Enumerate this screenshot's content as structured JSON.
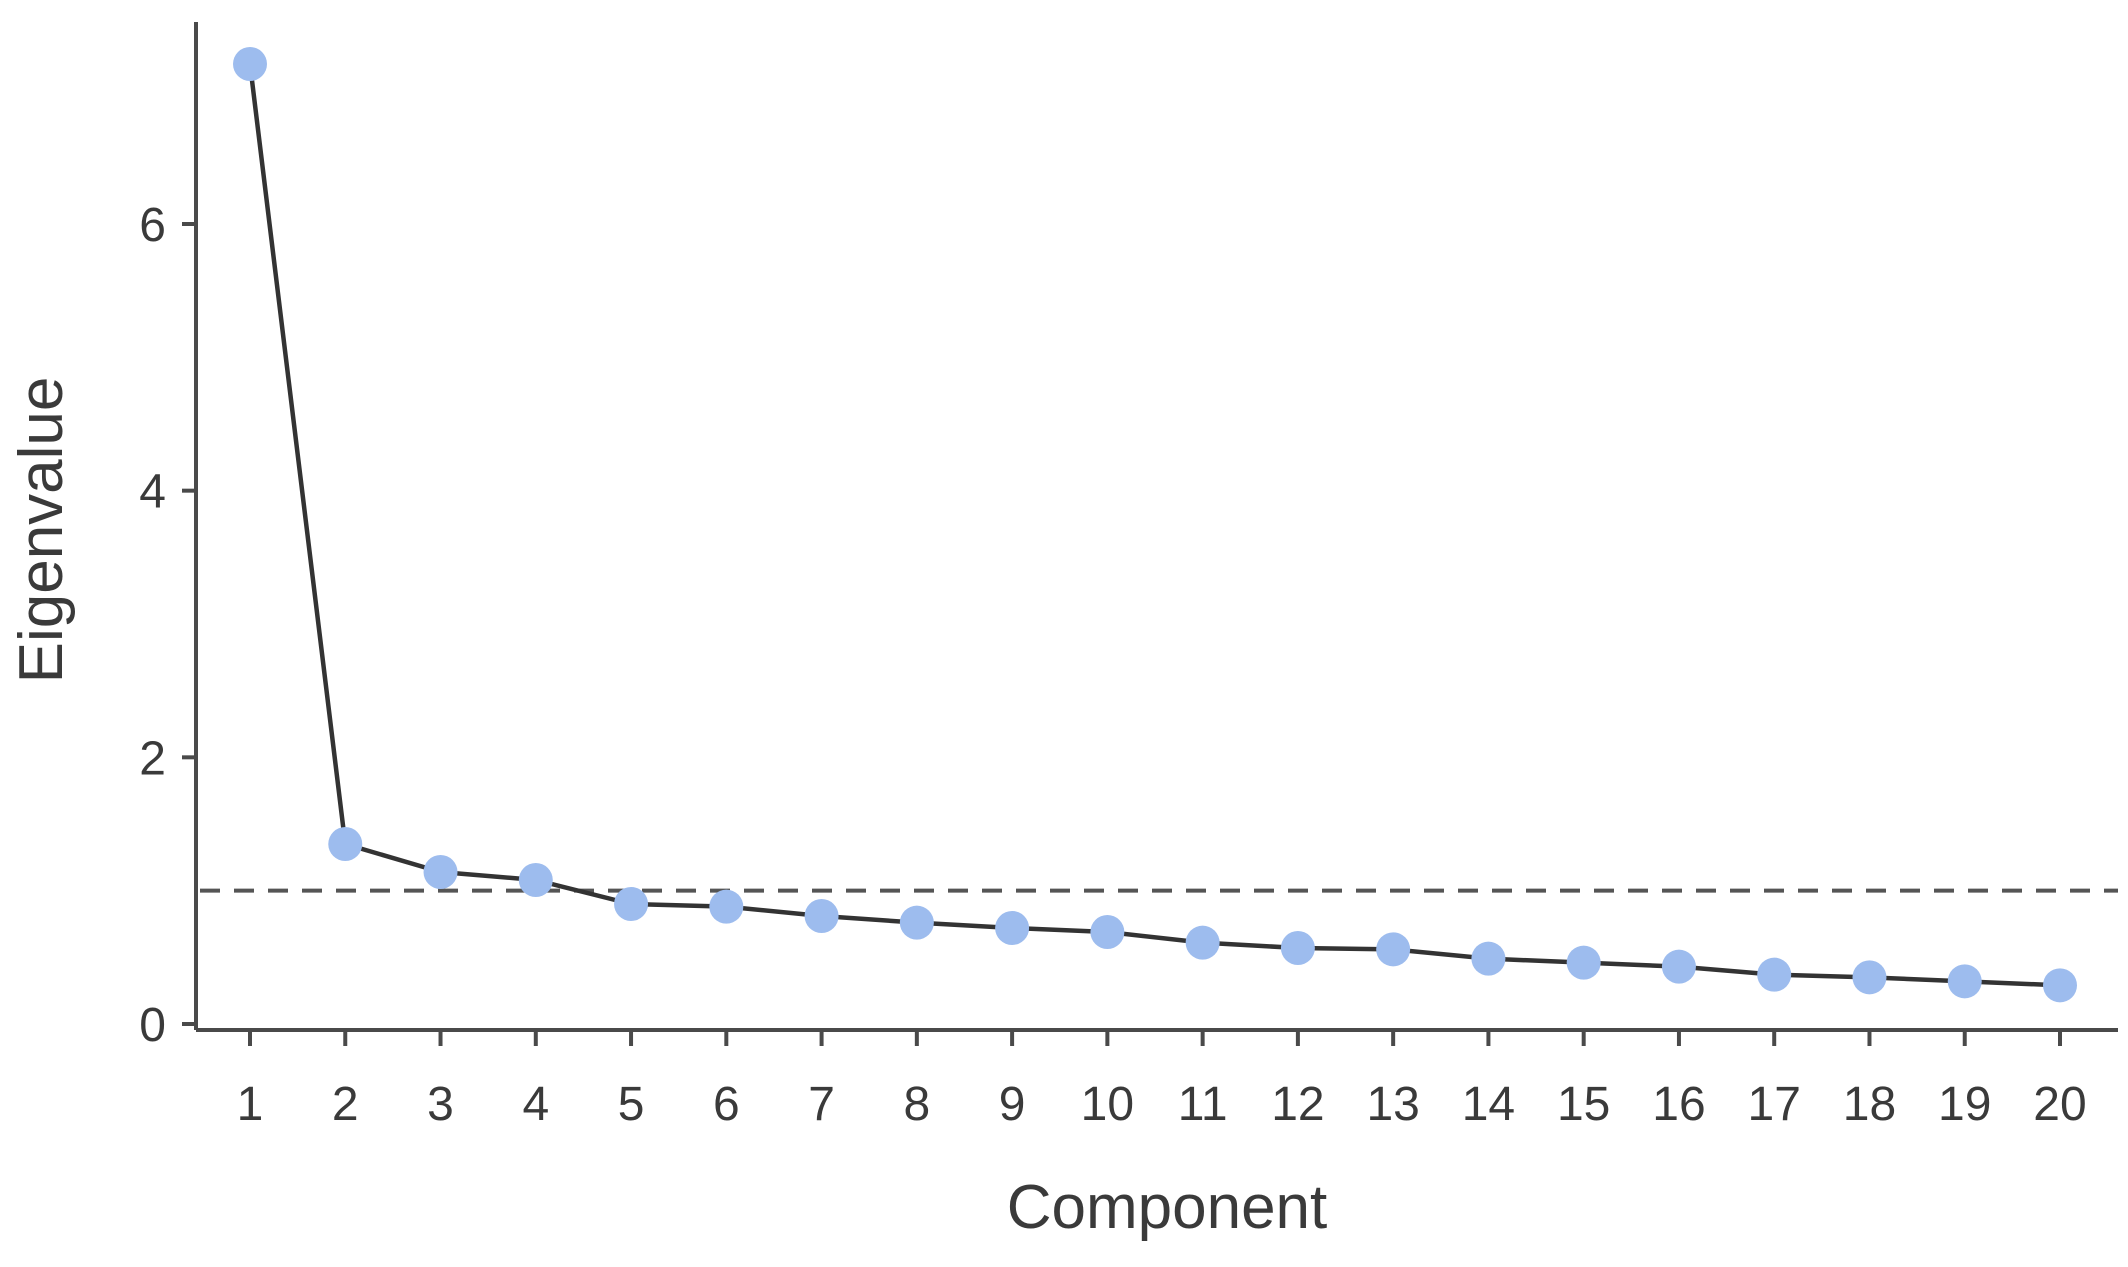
{
  "chart_data": {
    "type": "line",
    "title": "",
    "xlabel": "Component",
    "ylabel": "Eigenvalue",
    "x": [
      1,
      2,
      3,
      4,
      5,
      6,
      7,
      8,
      9,
      10,
      11,
      12,
      13,
      14,
      15,
      16,
      17,
      18,
      19,
      20
    ],
    "series": [
      {
        "values": [
          7.2,
          1.35,
          1.14,
          1.08,
          0.9,
          0.88,
          0.81,
          0.76,
          0.72,
          0.69,
          0.61,
          0.57,
          0.56,
          0.49,
          0.46,
          0.43,
          0.37,
          0.35,
          0.32,
          0.29
        ]
      }
    ],
    "reference_line": {
      "y": 1,
      "style": "dashed"
    },
    "ylim": [
      0,
      7.3
    ],
    "xlim": [
      0.4,
      20.6
    ],
    "yticks": [
      0,
      2,
      4,
      6
    ],
    "xticks": [
      1,
      2,
      3,
      4,
      5,
      6,
      7,
      8,
      9,
      10,
      11,
      12,
      13,
      14,
      15,
      16,
      17,
      18,
      19,
      20
    ],
    "grid": false,
    "legend": "none",
    "colors": {
      "point": "#9dbcee",
      "line": "#333333",
      "axis": "#4a4a4a",
      "reference": "#555555"
    }
  }
}
